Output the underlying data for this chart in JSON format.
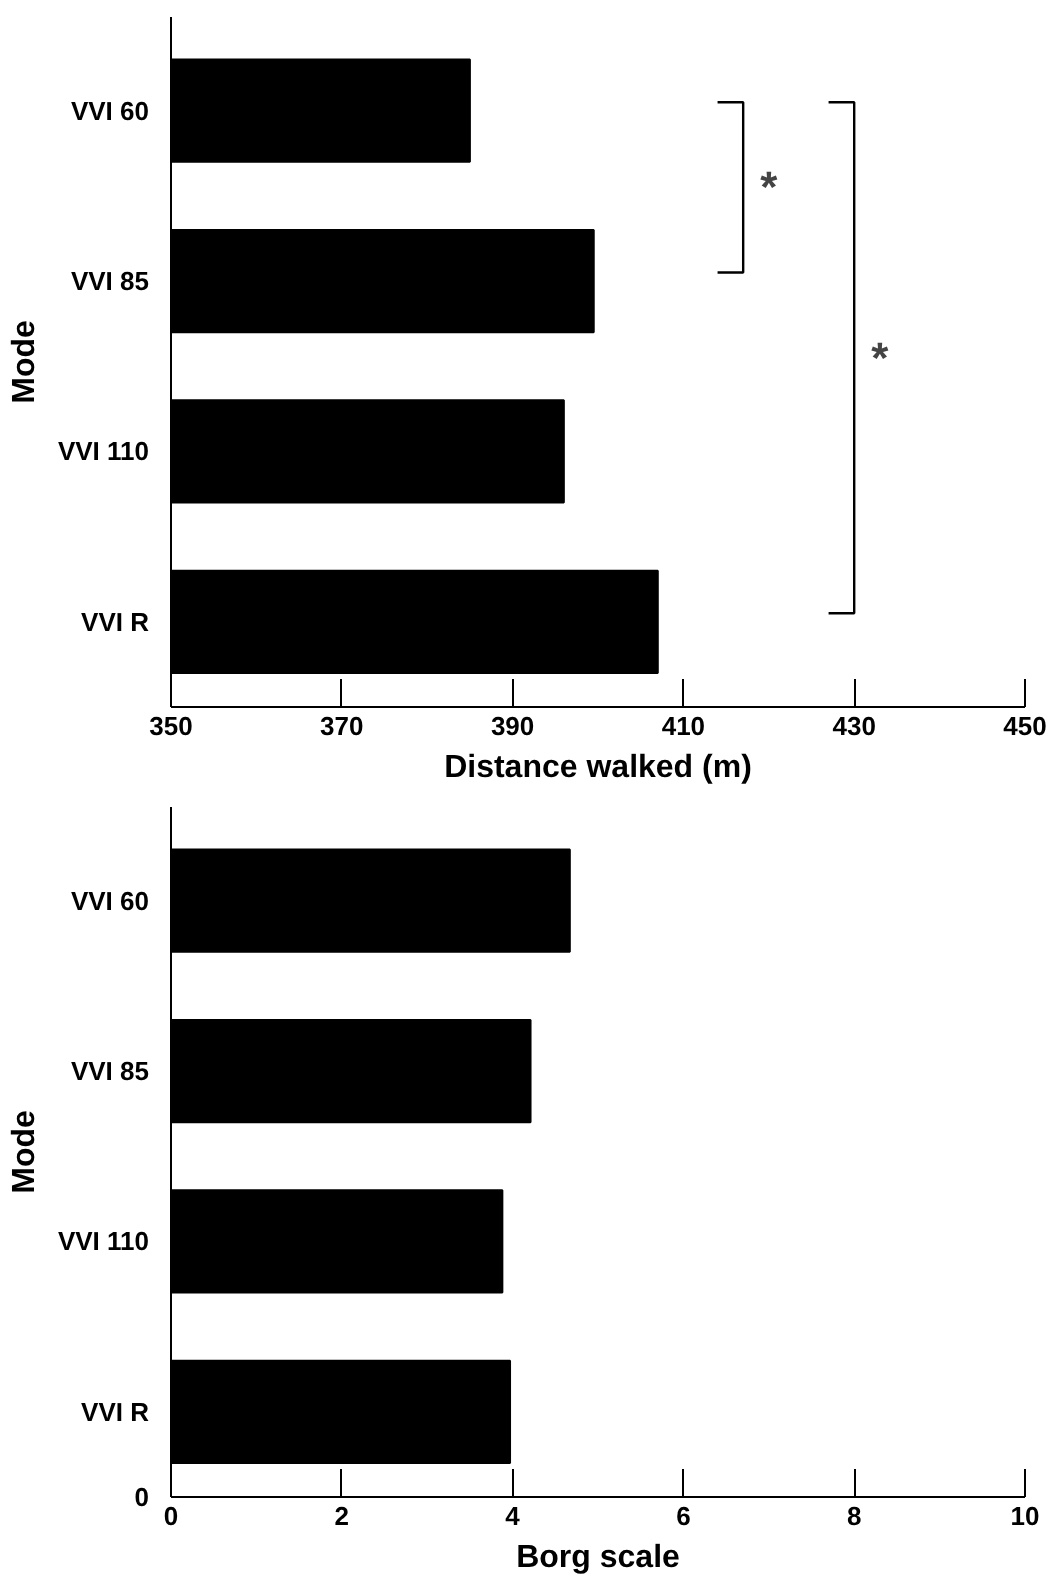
{
  "chart_data": [
    {
      "type": "bar",
      "orientation": "horizontal",
      "ylabel": "Mode",
      "xlabel": "Distance walked (m)",
      "categories": [
        "VVI 60",
        "VVI 85",
        "VVI 110",
        "VVI R"
      ],
      "values": [
        385,
        399.5,
        396,
        407
      ],
      "color": "#000000",
      "xlim": [
        350,
        450
      ],
      "xticks": [
        350,
        370,
        390,
        410,
        430,
        450
      ],
      "grid": false,
      "annotations": [
        "*",
        "*"
      ]
    },
    {
      "type": "bar",
      "orientation": "horizontal",
      "ylabel": "Mode",
      "xlabel": "Borg scale",
      "categories": [
        "VVI 60",
        "VVI 85",
        "VVI 110",
        "VVI R"
      ],
      "values": [
        4.67,
        4.21,
        3.88,
        3.97
      ],
      "color": "#000000",
      "xlim": [
        0,
        10
      ],
      "xticks": [
        0,
        2,
        4,
        6,
        8,
        10
      ],
      "grid": false,
      "annotations": [
        "0"
      ]
    }
  ]
}
